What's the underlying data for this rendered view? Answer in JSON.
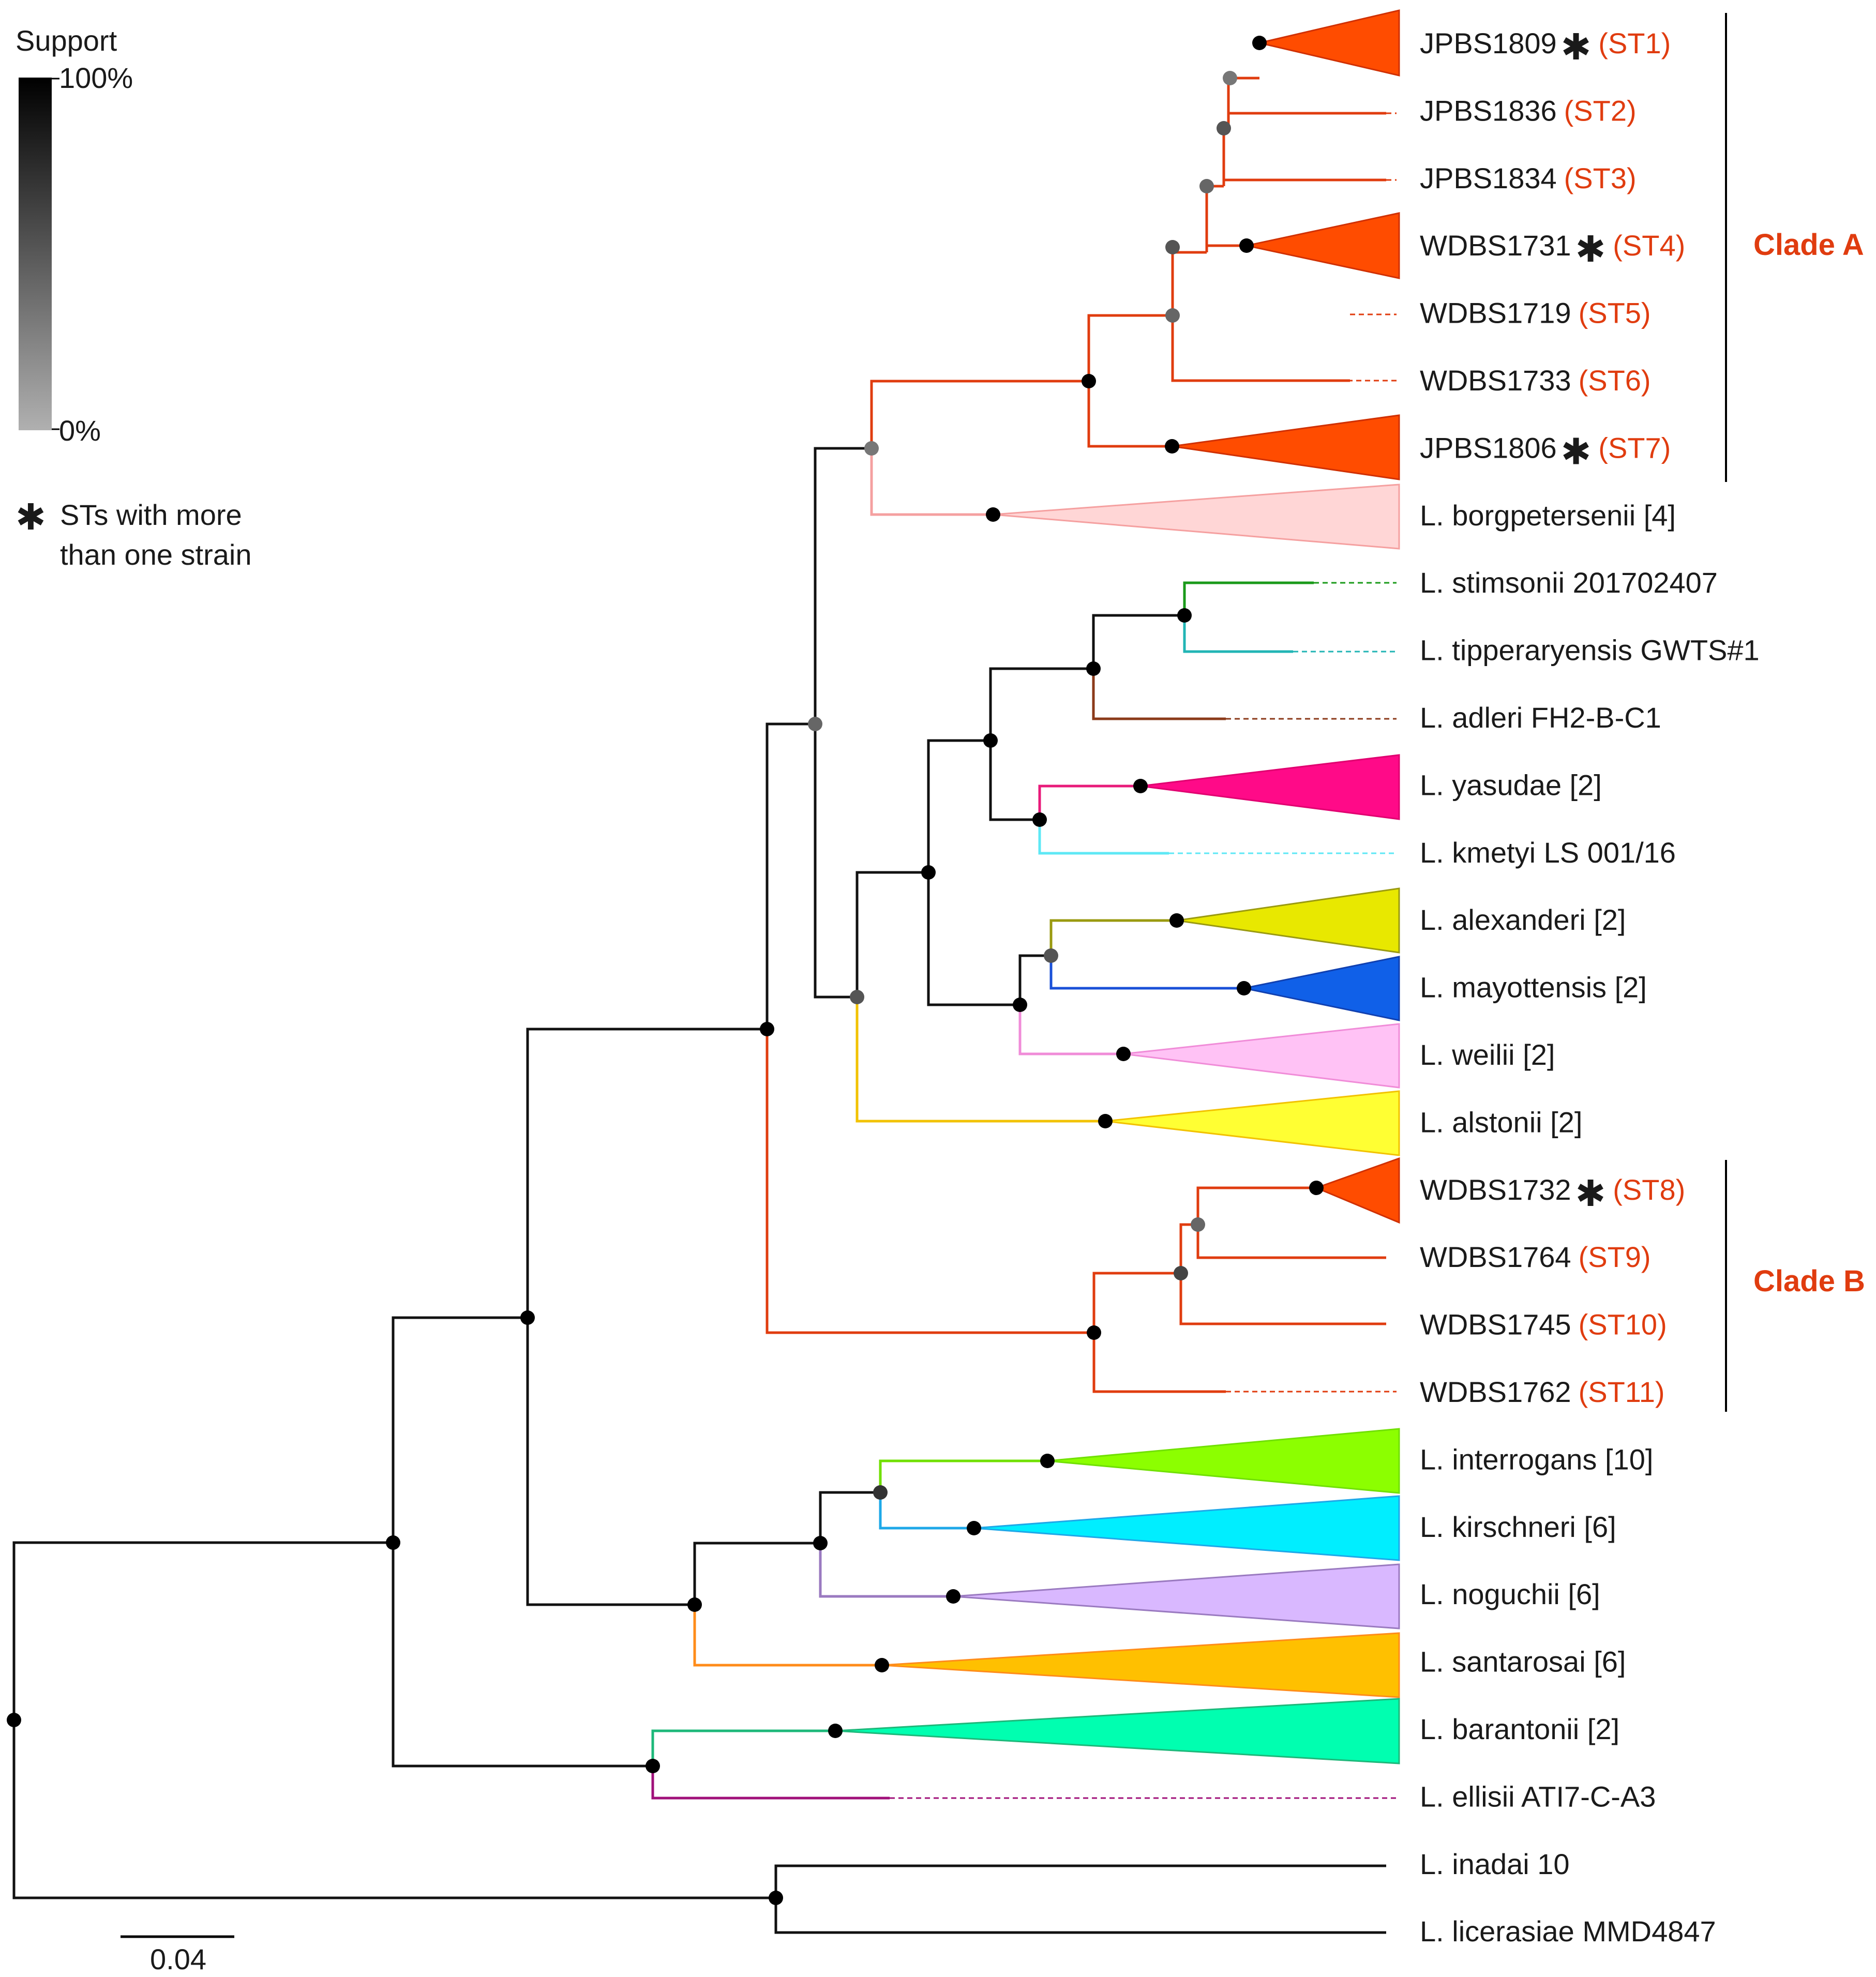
{
  "legend": {
    "support_title": "Support",
    "support_max": "100%",
    "support_min": "0%",
    "note_symbol": "✱",
    "note_line1": "STs with more",
    "note_line2": "than one strain"
  },
  "scale_bar": {
    "label": "0.04"
  },
  "colors": {
    "highlight": "#e03c0f",
    "clade_a": "#e8401a",
    "borgpetersenii": "#ffd6d6",
    "stimsonii": "#1a9a1a",
    "tipperaryensis": "#22b5b5",
    "adleri": "#8b3a1a",
    "yasudae": "#ff0a88",
    "kmetyi": "#5ee8f5",
    "alexanderi": "#e8e800",
    "mayottensis": "#1060e8",
    "weilii": "#ffc2f5",
    "alstonii": "#ffff33",
    "interrogans": "#8cff00",
    "kirschneri": "#00eeff",
    "noguchii": "#d9b8ff",
    "santarosai": "#ffc000",
    "barantonii": "#00ffb0",
    "ellisii": "#a0107a"
  },
  "tips": [
    {
      "name": "JPBS1809",
      "star": true,
      "st": "(ST1)"
    },
    {
      "name": "JPBS1836",
      "star": false,
      "st": "(ST2)"
    },
    {
      "name": "JPBS1834",
      "star": false,
      "st": "(ST3)"
    },
    {
      "name": "WDBS1731",
      "star": true,
      "st": "(ST4)"
    },
    {
      "name": "WDBS1719",
      "star": false,
      "st": "(ST5)"
    },
    {
      "name": "WDBS1733",
      "star": false,
      "st": "(ST6)"
    },
    {
      "name": "JPBS1806",
      "star": true,
      "st": "(ST7)"
    },
    {
      "name": "L. borgpetersenii [4]",
      "star": false,
      "st": ""
    },
    {
      "name": "L. stimsonii 201702407",
      "star": false,
      "st": ""
    },
    {
      "name": "L. tipperaryensis GWTS#1",
      "star": false,
      "st": ""
    },
    {
      "name": "L. adleri FH2-B-C1",
      "star": false,
      "st": ""
    },
    {
      "name": "L. yasudae [2]",
      "star": false,
      "st": ""
    },
    {
      "name": "L. kmetyi LS 001/16",
      "star": false,
      "st": ""
    },
    {
      "name": "L. alexanderi [2]",
      "star": false,
      "st": ""
    },
    {
      "name": "L. mayottensis [2]",
      "star": false,
      "st": ""
    },
    {
      "name": "L. weilii [2]",
      "star": false,
      "st": ""
    },
    {
      "name": "L. alstonii [2]",
      "star": false,
      "st": ""
    },
    {
      "name": "WDBS1732",
      "star": true,
      "st": "(ST8)"
    },
    {
      "name": "WDBS1764",
      "star": false,
      "st": "(ST9)"
    },
    {
      "name": "WDBS1745",
      "star": false,
      "st": "(ST10)"
    },
    {
      "name": "WDBS1762",
      "star": false,
      "st": "(ST11)"
    },
    {
      "name": "L. interrogans [10]",
      "star": false,
      "st": ""
    },
    {
      "name": "L. kirschneri [6]",
      "star": false,
      "st": ""
    },
    {
      "name": "L. noguchii [6]",
      "star": false,
      "st": ""
    },
    {
      "name": "L. santarosai [6]",
      "star": false,
      "st": ""
    },
    {
      "name": "L. barantonii [2]",
      "star": false,
      "st": ""
    },
    {
      "name": "L. ellisii ATI7-C-A3",
      "star": false,
      "st": ""
    },
    {
      "name": "L. inadai 10",
      "star": false,
      "st": ""
    },
    {
      "name": "L. licerasiae MMD4847",
      "star": false,
      "st": ""
    }
  ],
  "clades": [
    {
      "label": "Clade A"
    },
    {
      "label": "Clade B"
    }
  ]
}
